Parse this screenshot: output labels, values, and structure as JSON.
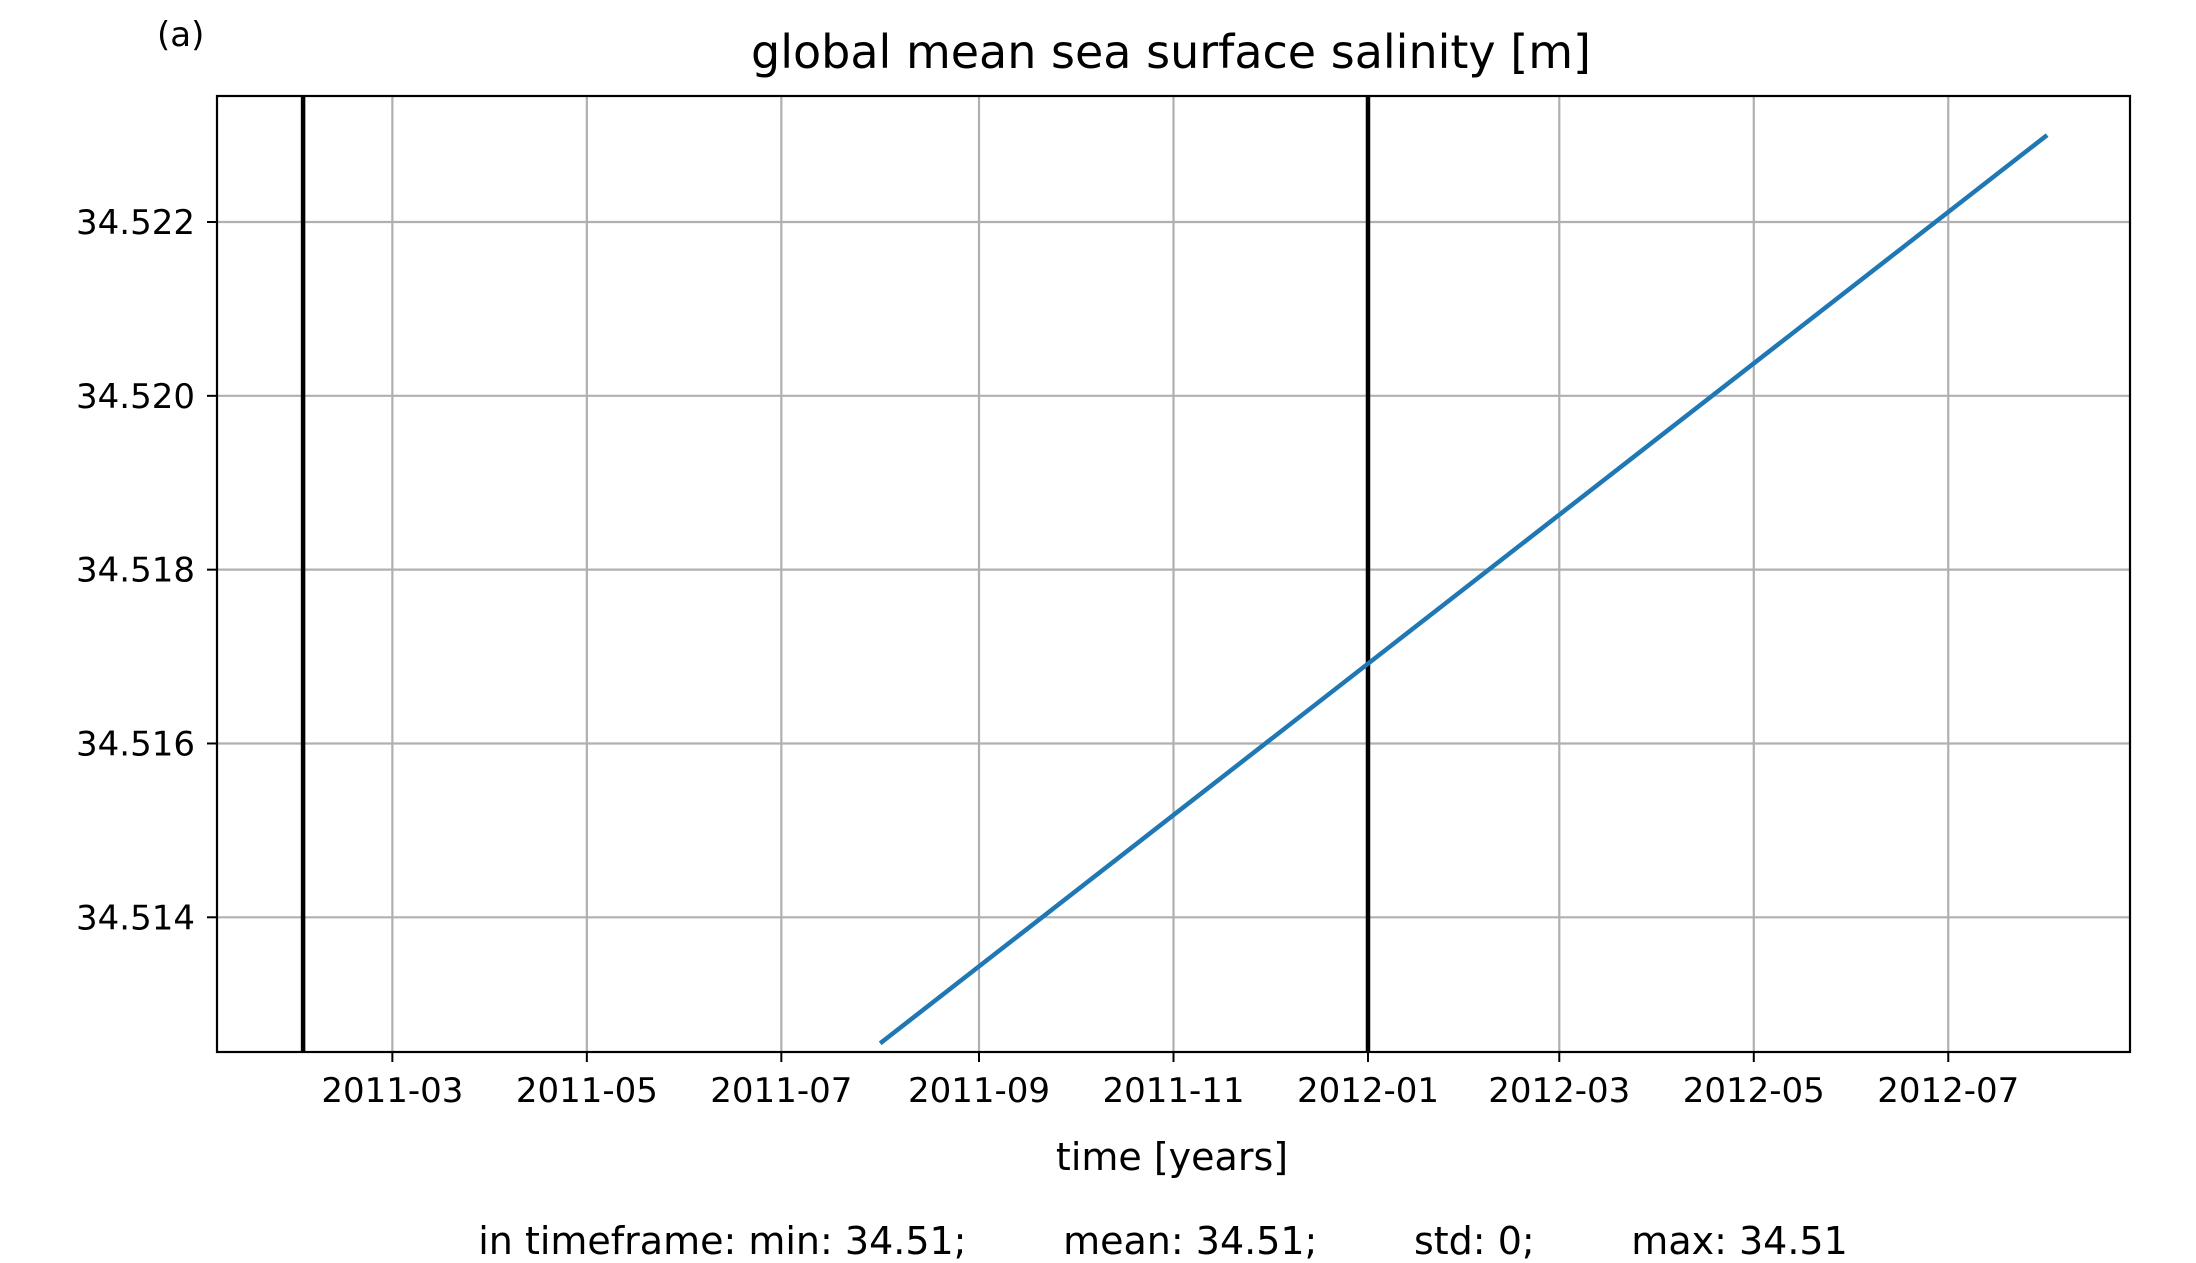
{
  "panel_label": "(a)",
  "stats_text": "in timeframe: min: 34.51;        mean: 34.51;        std: 0;        max: 34.51",
  "chart_data": {
    "type": "line",
    "title": "global mean sea surface salinity [m]",
    "xlabel": "time [years]",
    "ylabel": "",
    "xlim": [
      "2011-01-05",
      "2012-08-27"
    ],
    "ylim": [
      34.51245,
      34.52345
    ],
    "x_ticks": [
      "2011-03",
      "2011-05",
      "2011-07",
      "2011-09",
      "2011-11",
      "2012-01",
      "2012-03",
      "2012-05",
      "2012-07"
    ],
    "x_tick_dates": [
      "2011-03-01",
      "2011-05-01",
      "2011-07-01",
      "2011-09-01",
      "2011-11-01",
      "2012-01-01",
      "2012-03-01",
      "2012-05-01",
      "2012-07-01"
    ],
    "y_ticks": [
      34.514,
      34.516,
      34.518,
      34.52,
      34.522
    ],
    "y_tick_labels": [
      "34.514",
      "34.516",
      "34.518",
      "34.520",
      "34.522"
    ],
    "grid": true,
    "series": [
      {
        "color": "#1f77b4",
        "x": [
          "2011-08-01",
          "2012-08-01"
        ],
        "y": [
          34.51255,
          34.523
        ]
      }
    ],
    "vertical_lines": [
      {
        "date": "2011-02-01",
        "color": "#000000"
      },
      {
        "date": "2012-01-01",
        "color": "#000000"
      }
    ]
  }
}
